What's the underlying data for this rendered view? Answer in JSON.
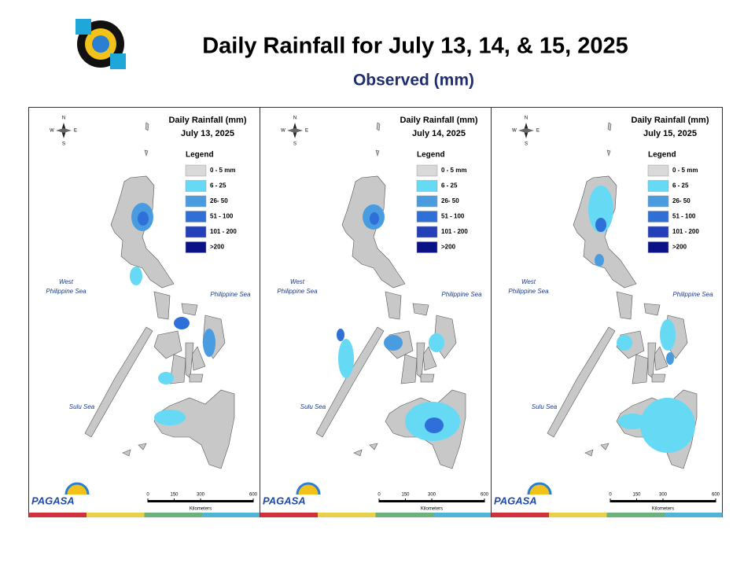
{
  "header": {
    "title": "Daily Rainfall for July 13, 14, & 15, 2025",
    "subtitle": "Observed (mm)"
  },
  "panels": [
    {
      "title": "Daily Rainfall (mm)",
      "date": "July 13, 2025",
      "legend_title": "Legend",
      "legend": [
        {
          "label": "0 - 5 mm",
          "color": "#d9d9d9"
        },
        {
          "label": "6 - 25",
          "color": "#66d9f5"
        },
        {
          "label": "26- 50",
          "color": "#4a9ce0"
        },
        {
          "label": "51 - 100",
          "color": "#2f6fd8"
        },
        {
          "label": "101 - 200",
          "color": "#2340b8"
        },
        {
          "label": ">200",
          "color": "#0a1285"
        }
      ],
      "west_sea": [
        "West",
        "Philippine Sea"
      ],
      "east_sea": "Philippine Sea",
      "south_sea": "Sulu Sea",
      "compass": [
        "N",
        "S",
        "W",
        "E"
      ],
      "scale_ticks": [
        0,
        150,
        300,
        600
      ],
      "scale_unit": "Kilometers",
      "logo": "PAGASA"
    },
    {
      "title": "Daily Rainfall (mm)",
      "date": "July 14, 2025",
      "legend_title": "Legend",
      "legend": [
        {
          "label": "0 - 5 mm",
          "color": "#d9d9d9"
        },
        {
          "label": "6 - 25",
          "color": "#66d9f5"
        },
        {
          "label": "26- 50",
          "color": "#4a9ce0"
        },
        {
          "label": "51 - 100",
          "color": "#2f6fd8"
        },
        {
          "label": "101 - 200",
          "color": "#2340b8"
        },
        {
          "label": ">200",
          "color": "#0a1285"
        }
      ],
      "west_sea": [
        "West",
        "Philippine Sea"
      ],
      "east_sea": "Philippine Sea",
      "south_sea": "Sulu Sea",
      "compass": [
        "N",
        "S",
        "W",
        "E"
      ],
      "scale_ticks": [
        0,
        150,
        300,
        600
      ],
      "scale_unit": "Kilometers",
      "logo": "PAGASA"
    },
    {
      "title": "Daily Rainfall (mm)",
      "date": "July 15, 2025",
      "legend_title": "Legend",
      "legend": [
        {
          "label": "0 - 5 mm",
          "color": "#d9d9d9"
        },
        {
          "label": "6 - 25",
          "color": "#66d9f5"
        },
        {
          "label": "26- 50",
          "color": "#4a9ce0"
        },
        {
          "label": "51 - 100",
          "color": "#2f6fd8"
        },
        {
          "label": "101 - 200",
          "color": "#2340b8"
        },
        {
          "label": ">200",
          "color": "#0a1285"
        }
      ],
      "west_sea": [
        "West",
        "Philippine Sea"
      ],
      "east_sea": "Philippine Sea",
      "south_sea": "Sulu Sea",
      "compass": [
        "N",
        "S",
        "W",
        "E"
      ],
      "scale_ticks": [
        0,
        150,
        300,
        600
      ],
      "scale_unit": "Kilometers",
      "logo": "PAGASA"
    }
  ]
}
